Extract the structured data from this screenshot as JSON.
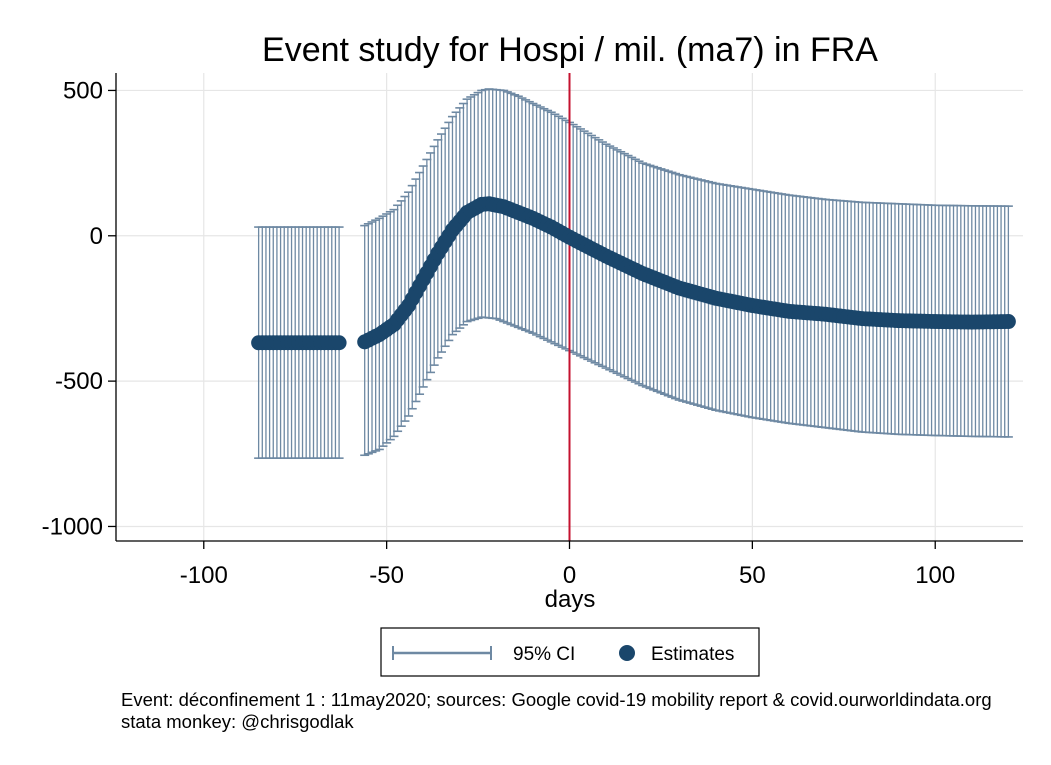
{
  "chart_data": {
    "type": "scatter",
    "title": "Event study for Hospi / mil. (ma7) in FRA",
    "xlabel": "days",
    "ylabel": "",
    "xlim": [
      -124,
      124
    ],
    "ylim": [
      -1050,
      560
    ],
    "xticks": [
      -100,
      -50,
      0,
      50,
      100
    ],
    "yticks": [
      500,
      0,
      -500,
      -1000
    ],
    "xtick_labels": [
      "-100",
      "-50",
      "0",
      "50",
      "100"
    ],
    "ytick_labels": [
      "500",
      "0",
      "-500",
      "-1000"
    ],
    "grid": true,
    "vline_x": 0,
    "legend": {
      "position": "bottom",
      "ci_label": "95% CI",
      "estimates_label": "Estimates"
    },
    "colors": {
      "estimates": "#1a466b",
      "ci": "#6e89a3",
      "vline": "#c4122f",
      "grid": "#e6e6e6"
    },
    "segments": [
      {
        "x_start": -85,
        "x_end": -63,
        "est_knots": [
          [
            -85,
            -368
          ],
          [
            -63,
            -368
          ]
        ],
        "lo_knots": [
          [
            -85,
            -765
          ],
          [
            -63,
            -765
          ]
        ],
        "hi_knots": [
          [
            -85,
            30
          ],
          [
            -63,
            30
          ]
        ]
      },
      {
        "x_start": -56,
        "x_end": 120,
        "est_knots": [
          [
            -56,
            -365
          ],
          [
            -52,
            -340
          ],
          [
            -48,
            -305
          ],
          [
            -44,
            -240
          ],
          [
            -40,
            -150
          ],
          [
            -36,
            -60
          ],
          [
            -32,
            20
          ],
          [
            -28,
            80
          ],
          [
            -24,
            108
          ],
          [
            -22,
            110
          ],
          [
            -18,
            100
          ],
          [
            -14,
            80
          ],
          [
            -10,
            60
          ],
          [
            -5,
            30
          ],
          [
            0,
            -5
          ],
          [
            10,
            -70
          ],
          [
            20,
            -130
          ],
          [
            30,
            -180
          ],
          [
            40,
            -215
          ],
          [
            50,
            -240
          ],
          [
            60,
            -260
          ],
          [
            70,
            -270
          ],
          [
            80,
            -285
          ],
          [
            90,
            -292
          ],
          [
            100,
            -295
          ],
          [
            110,
            -297
          ],
          [
            120,
            -295
          ]
        ],
        "lo_knots": [
          [
            -56,
            -755
          ],
          [
            -52,
            -735
          ],
          [
            -48,
            -690
          ],
          [
            -44,
            -620
          ],
          [
            -40,
            -520
          ],
          [
            -36,
            -420
          ],
          [
            -32,
            -340
          ],
          [
            -28,
            -295
          ],
          [
            -24,
            -280
          ],
          [
            -20,
            -285
          ],
          [
            -15,
            -310
          ],
          [
            -10,
            -335
          ],
          [
            -5,
            -365
          ],
          [
            0,
            -395
          ],
          [
            10,
            -455
          ],
          [
            20,
            -515
          ],
          [
            30,
            -565
          ],
          [
            40,
            -600
          ],
          [
            50,
            -625
          ],
          [
            60,
            -645
          ],
          [
            70,
            -660
          ],
          [
            80,
            -675
          ],
          [
            90,
            -683
          ],
          [
            100,
            -687
          ],
          [
            110,
            -690
          ],
          [
            120,
            -692
          ]
        ],
        "hi_knots": [
          [
            -56,
            35
          ],
          [
            -52,
            60
          ],
          [
            -48,
            90
          ],
          [
            -44,
            150
          ],
          [
            -40,
            240
          ],
          [
            -36,
            330
          ],
          [
            -32,
            410
          ],
          [
            -28,
            470
          ],
          [
            -24,
            500
          ],
          [
            -22,
            505
          ],
          [
            -18,
            500
          ],
          [
            -14,
            480
          ],
          [
            -10,
            455
          ],
          [
            -5,
            425
          ],
          [
            0,
            390
          ],
          [
            10,
            315
          ],
          [
            20,
            250
          ],
          [
            30,
            210
          ],
          [
            40,
            180
          ],
          [
            50,
            160
          ],
          [
            60,
            140
          ],
          [
            70,
            125
          ],
          [
            80,
            115
          ],
          [
            90,
            110
          ],
          [
            100,
            105
          ],
          [
            110,
            103
          ],
          [
            120,
            102
          ]
        ]
      }
    ]
  },
  "note": {
    "line1": "Event: déconfinement 1 : 11may2020; sources: Google covid-19 mobility report & covid.ourworldindata.org",
    "line2": "stata monkey: @chrisgodlak"
  }
}
